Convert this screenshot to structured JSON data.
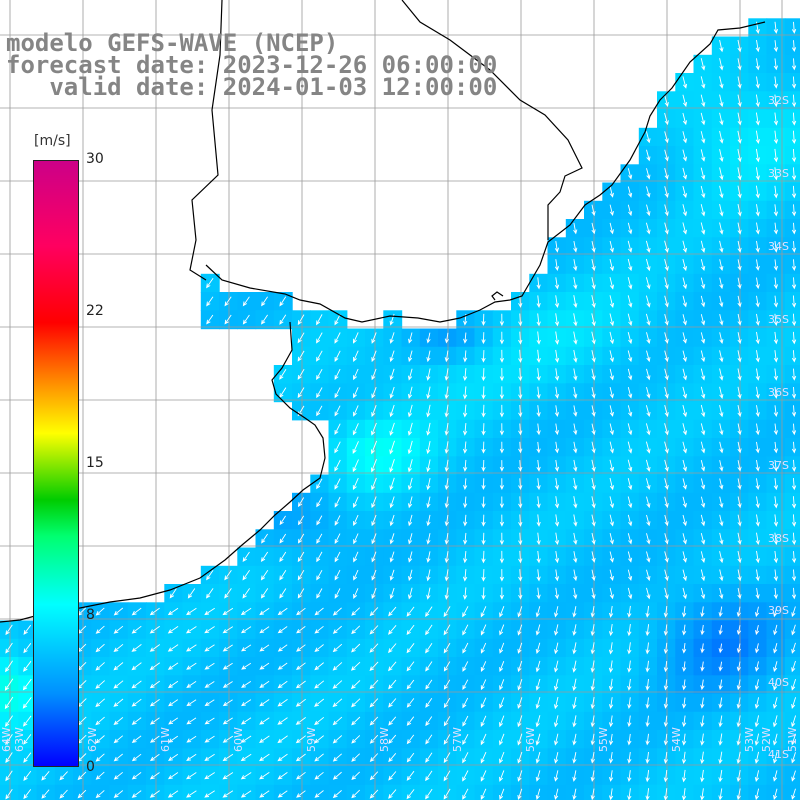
{
  "header": {
    "line1": "modelo GEFS-WAVE (NCEP)",
    "line2": "forecast date: 2023-12-26 06:00:00",
    "line3": "   valid date: 2024-01-03 12:00:00"
  },
  "colorbar": {
    "units": "[m/s]",
    "ticks": [
      "30",
      "22",
      "15",
      "8",
      "0"
    ],
    "tick_values": [
      30,
      22,
      15,
      8,
      0
    ],
    "range": [
      0,
      30
    ]
  },
  "lat_labels": [
    "32S",
    "33S",
    "34S",
    "35S",
    "36S",
    "37S",
    "38S",
    "39S",
    "40S",
    "41S"
  ],
  "lon_labels": [
    "64W",
    "63W",
    "62W",
    "61W",
    "60W",
    "59W",
    "58W",
    "57W",
    "56W",
    "55W",
    "54W",
    "53W",
    "52W",
    "51W"
  ],
  "colors": {
    "land": "#ffffff",
    "grid": "#9a9a9a",
    "coast": "#000000",
    "arrows": "#ffffff"
  },
  "field": {
    "variable": "wind speed",
    "direction": "mostly from north-east, arrows pointing south / south-west"
  }
}
